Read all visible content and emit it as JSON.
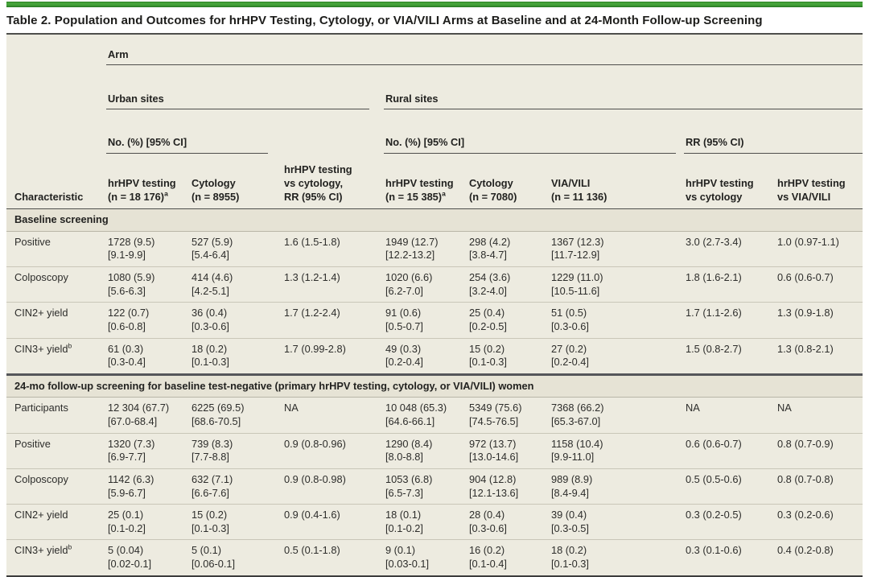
{
  "accent_color": "#3E9B35",
  "title": "Table 2. Population and Outcomes for hrHPV Testing, Cytology, or VIA/VILI Arms at Baseline and at 24-Month Follow-up Screening",
  "header": {
    "characteristic": "Characteristic",
    "arm": "Arm",
    "urban_sites": "Urban sites",
    "rural_sites": "Rural sites",
    "no_pct_ci_urban": "No. (%) [95% CI]",
    "no_pct_ci_rural": "No. (%) [95% CI]",
    "rr_95_ci": "RR (95% CI)",
    "urban_rr_col": "hrHPV testing\nvs cytology,\nRR (95% CI)",
    "urban_hrhpv": "hrHPV testing\n(n = 18 176)",
    "urban_hrhpv_sup": "a",
    "urban_cytology": "Cytology\n(n = 8955)",
    "rural_hrhpv": "hrHPV testing\n(n = 15 385)",
    "rural_hrhpv_sup": "a",
    "rural_cytology": "Cytology\n(n = 7080)",
    "rural_via": "VIA/VILI\n(n = 11 136)",
    "rr_hrhpv_vs_cyto": "hrHPV testing\nvs cytology",
    "rr_hrhpv_vs_via": "hrHPV testing\nvs VIA/VILI"
  },
  "sections": [
    {
      "label": "Baseline screening",
      "rows": [
        {
          "label": "Positive",
          "sup": "",
          "cells": [
            "1728 (9.5)\n[9.1-9.9]",
            "527 (5.9)\n[5.4-6.4]",
            "1.6 (1.5-1.8)",
            "1949 (12.7)\n[12.2-13.2]",
            "298 (4.2)\n[3.8-4.7]",
            "1367 (12.3)\n[11.7-12.9]",
            "3.0 (2.7-3.4)",
            "1.0 (0.97-1.1)"
          ]
        },
        {
          "label": "Colposcopy",
          "sup": "",
          "cells": [
            "1080 (5.9)\n[5.6-6.3]",
            "414 (4.6)\n[4.2-5.1]",
            "1.3 (1.2-1.4)",
            "1020 (6.6)\n[6.2-7.0]",
            "254 (3.6)\n[3.2-4.0]",
            "1229 (11.0)\n[10.5-11.6]",
            "1.8 (1.6-2.1)",
            "0.6 (0.6-0.7)"
          ]
        },
        {
          "label": "CIN2+ yield",
          "sup": "",
          "cells": [
            "122 (0.7)\n[0.6-0.8]",
            "36 (0.4)\n[0.3-0.6]",
            "1.7 (1.2-2.4)",
            "91 (0.6)\n[0.5-0.7]",
            "25 (0.4)\n[0.2-0.5]",
            "51 (0.5)\n[0.3-0.6]",
            "1.7 (1.1-2.6)",
            "1.3 (0.9-1.8)"
          ]
        },
        {
          "label": "CIN3+ yield",
          "sup": "b",
          "cells": [
            "61 (0.3)\n[0.3-0.4]",
            "18 (0.2)\n[0.1-0.3]",
            "1.7 (0.99-2.8)",
            "49 (0.3)\n[0.2-0.4]",
            "15 (0.2)\n[0.1-0.3]",
            "27 (0.2)\n[0.2-0.4]",
            "1.5 (0.8-2.7)",
            "1.3 (0.8-2.1)"
          ]
        }
      ]
    },
    {
      "label": "24-mo follow-up screening for baseline test-negative (primary hrHPV testing, cytology, or VIA/VILI) women",
      "rows": [
        {
          "label": "Participants",
          "sup": "",
          "cells": [
            "12 304 (67.7)\n[67.0-68.4]",
            "6225 (69.5)\n[68.6-70.5]",
            "NA",
            "10 048 (65.3)\n[64.6-66.1]",
            "5349 (75.6)\n[74.5-76.5]",
            "7368 (66.2)\n[65.3-67.0]",
            "NA",
            "NA"
          ]
        },
        {
          "label": "Positive",
          "sup": "",
          "cells": [
            "1320 (7.3)\n[6.9-7.7]",
            "739 (8.3)\n[7.7-8.8]",
            "0.9 (0.8-0.96)",
            "1290 (8.4)\n[8.0-8.8]",
            "972 (13.7)\n[13.0-14.6]",
            "1158 (10.4)\n[9.9-11.0]",
            "0.6 (0.6-0.7)",
            "0.8 (0.7-0.9)"
          ]
        },
        {
          "label": "Colposcopy",
          "sup": "",
          "cells": [
            "1142 (6.3)\n[5.9-6.7]",
            "632 (7.1)\n[6.6-7.6]",
            "0.9 (0.8-0.98)",
            "1053 (6.8)\n[6.5-7.3]",
            "904 (12.8)\n[12.1-13.6]",
            "989 (8.9)\n[8.4-9.4]",
            "0.5 (0.5-0.6)",
            "0.8 (0.7-0.8)"
          ]
        },
        {
          "label": "CIN2+ yield",
          "sup": "",
          "cells": [
            "25 (0.1)\n[0.1-0.2]",
            "15 (0.2)\n[0.1-0.3]",
            "0.9 (0.4-1.6)",
            "18 (0.1)\n[0.1-0.2]",
            "28 (0.4)\n[0.3-0.6]",
            "39 (0.4)\n[0.3-0.5]",
            "0.3 (0.2-0.5)",
            "0.3 (0.2-0.6)"
          ]
        },
        {
          "label": "CIN3+ yield",
          "sup": "b",
          "cells": [
            "5 (0.04)\n[0.02-0.1]",
            "5 (0.1)\n[0.06-0.1]",
            "0.5 (0.1-1.8)",
            "9 (0.1)\n[0.03-0.1]",
            "16 (0.2)\n[0.1-0.4]",
            "18 (0.2)\n[0.1-0.3]",
            "0.3 (0.1-0.6)",
            "0.4 (0.2-0.8)"
          ]
        }
      ]
    }
  ]
}
